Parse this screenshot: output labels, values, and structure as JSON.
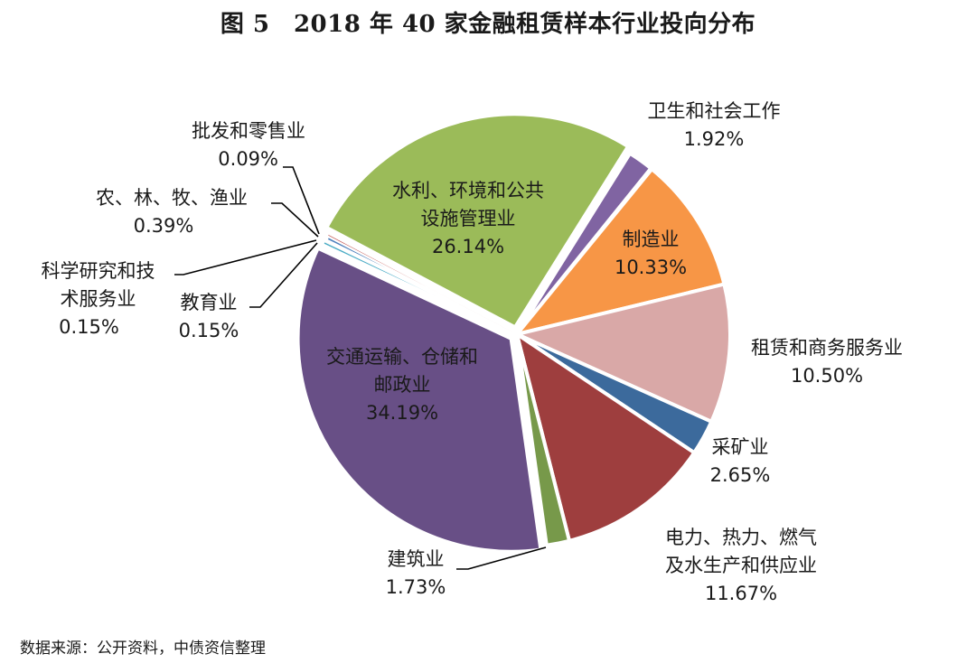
{
  "chart_data": {
    "type": "pie",
    "title": "图 5　2018 年 40 家金融租赁样本行业投向分布",
    "unit": "%",
    "start_angle_deg": 32,
    "direction": "clockwise",
    "slices": [
      {
        "name": "卫生和社会工作",
        "value": 1.92,
        "label": "1.92%",
        "color": "#8064A2"
      },
      {
        "name": "",
        "value": 0.09,
        "label": "",
        "color": "#4BACC6"
      },
      {
        "name": "制造业",
        "value": 10.33,
        "label": "10.33%",
        "color": "#F79646"
      },
      {
        "name": "租赁和商务服务业",
        "value": 10.5,
        "label": "10.50%",
        "color": "#D9A8A7"
      },
      {
        "name": "采矿业",
        "value": 2.65,
        "label": "2.65%",
        "color": "#3C6A9C"
      },
      {
        "name": "电力、热力、燃气及水生产和供应业",
        "value": 11.67,
        "label": "11.67%",
        "color": "#9E3E3E"
      },
      {
        "name": "建筑业",
        "value": 1.73,
        "label": "1.73%",
        "color": "#77994A"
      },
      {
        "name": "交通运输、仓储和邮政业",
        "value": 34.19,
        "label": "34.19%",
        "color": "#684F86"
      },
      {
        "name": "教育业",
        "value": 0.15,
        "label": "0.15%",
        "color": "#4BACC6"
      },
      {
        "name": "科学研究和技术服务业",
        "value": 0.15,
        "label": "0.15%",
        "color": "#E0873F"
      },
      {
        "name": "农、林、牧、渔业",
        "value": 0.39,
        "label": "0.39%",
        "color": "#4F81BD"
      },
      {
        "name": "批发和零售业",
        "value": 0.09,
        "label": "0.09%",
        "color": "#C0504D"
      },
      {
        "name": "水利、环境和公共设施管理业",
        "value": 26.14,
        "label": "26.14%",
        "color": "#9BBB59"
      }
    ]
  },
  "title": "图 5　2018 年 40 家金融租赁样本行业投向分布",
  "labels": {
    "health": {
      "name": "卫生和社会工作",
      "value": "1.92%"
    },
    "manufacturing": {
      "name": "制造业",
      "value": "10.33%"
    },
    "leasing": {
      "name": "租赁和商务服务业",
      "value": "10.50%"
    },
    "mining": {
      "name": "采矿业",
      "value": "2.65%"
    },
    "power_l1": "电力、热力、燃气",
    "power_l2": "及水生产和供应业",
    "power_value": "11.67%",
    "construction": {
      "name": "建筑业",
      "value": "1.73%"
    },
    "transport_l1": "交通运输、仓储和",
    "transport_l2": "邮政业",
    "transport_value": "34.19%",
    "water_l1": "水利、环境和公共",
    "water_l2": "设施管理业",
    "water_value": "26.14%",
    "wholesale": {
      "name": "批发和零售业",
      "value": "0.09%"
    },
    "agri": {
      "name": "农、林、牧、渔业",
      "value": "0.39%"
    },
    "science_l1": "科学研究和技",
    "science_l2": "术服务业",
    "science_value": "0.15%",
    "education": {
      "name": "教育业",
      "value": "0.15%"
    }
  },
  "source": "数据来源：公开资料，中债资信整理"
}
